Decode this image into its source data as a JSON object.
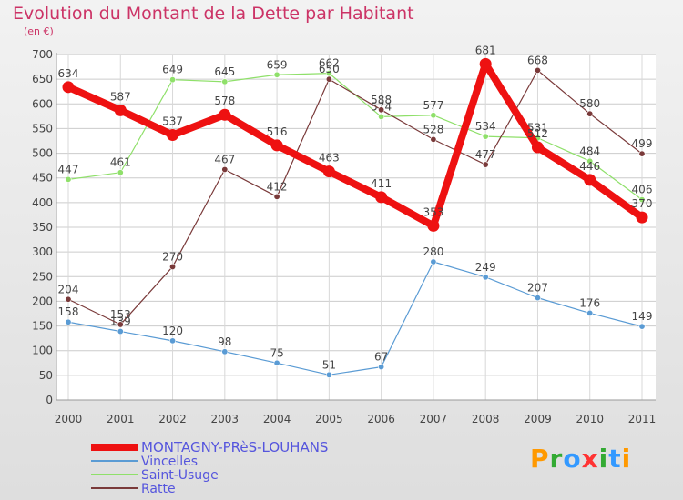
{
  "title": "Evolution du Montant de la Dette par Habitant",
  "unit": "(en €)",
  "brand": "Proxiti",
  "chart_data": {
    "type": "line",
    "title": "Evolution du Montant de la Dette par Habitant",
    "ylabel": "(en €)",
    "xlabel": "",
    "ylim": [
      0,
      700
    ],
    "yticks": [
      0,
      50,
      100,
      150,
      200,
      250,
      300,
      350,
      400,
      450,
      500,
      550,
      600,
      650,
      700
    ],
    "categories": [
      "2000",
      "2001",
      "2002",
      "2003",
      "2004",
      "2005",
      "2006",
      "2007",
      "2008",
      "2009",
      "2010",
      "2011"
    ],
    "grid": true,
    "legend_position": "bottom",
    "series": [
      {
        "name": "Vincelles",
        "color": "#5a9bd4",
        "values": [
          158,
          139,
          120,
          98,
          75,
          51,
          67,
          280,
          249,
          207,
          176,
          149
        ]
      },
      {
        "name": "Saint-Usuge",
        "color": "#8fe06a",
        "values": [
          447,
          461,
          649,
          645,
          659,
          662,
          574,
          577,
          534,
          531,
          484,
          406
        ]
      },
      {
        "name": "Ratte",
        "color": "#7a3a3a",
        "values": [
          204,
          153,
          270,
          467,
          412,
          650,
          588,
          528,
          477,
          668,
          580,
          499
        ]
      },
      {
        "name": "MONTAGNY-PRèS-LOUHANS",
        "color": "#ee1111",
        "values": [
          634,
          587,
          537,
          578,
          516,
          463,
          411,
          353,
          681,
          512,
          446,
          370
        ]
      }
    ],
    "legend_order": [
      "MONTAGNY-PRèS-LOUHANS",
      "Vincelles",
      "Saint-Usuge",
      "Ratte"
    ],
    "legend_text_colors": [
      "#5555dd",
      "#5555dd",
      "#5555dd",
      "#5555dd"
    ]
  }
}
